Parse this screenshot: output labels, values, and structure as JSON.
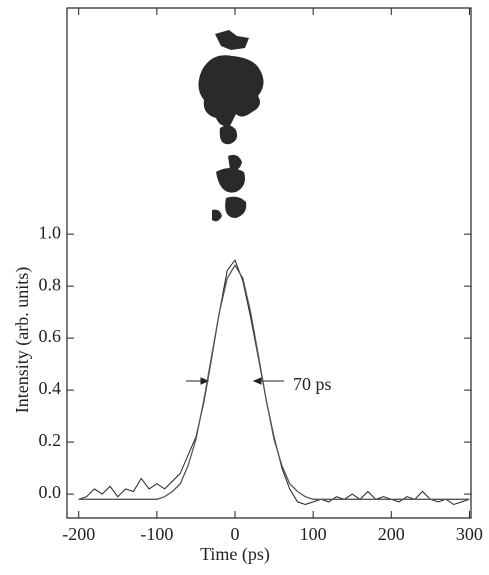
{
  "chart_data": {
    "type": "line",
    "x_label": "Time (ps)",
    "y_label": "Intensity (arb. units)",
    "annotation": "70 ps",
    "x": [
      -200,
      -190,
      -180,
      -170,
      -160,
      -150,
      -140,
      -130,
      -120,
      -110,
      -100,
      -90,
      -80,
      -70,
      -60,
      -50,
      -40,
      -30,
      -20,
      -10,
      0,
      10,
      20,
      30,
      40,
      50,
      60,
      70,
      80,
      90,
      100,
      110,
      120,
      130,
      140,
      150,
      160,
      170,
      180,
      190,
      200,
      210,
      220,
      230,
      240,
      250,
      260,
      270,
      280,
      290,
      300
    ],
    "series": [
      {
        "color": "#222222",
        "values": [
          -0.02,
          -0.01,
          0.02,
          0.0,
          0.03,
          -0.01,
          0.02,
          0.01,
          0.06,
          0.02,
          0.04,
          0.02,
          0.05,
          0.08,
          0.15,
          0.22,
          0.35,
          0.52,
          0.7,
          0.86,
          0.9,
          0.82,
          0.68,
          0.52,
          0.36,
          0.22,
          0.1,
          0.02,
          -0.03,
          -0.04,
          -0.03,
          -0.02,
          -0.03,
          -0.01,
          -0.02,
          0.0,
          -0.02,
          0.01,
          -0.02,
          -0.01,
          -0.02,
          -0.03,
          -0.01,
          -0.02,
          0.01,
          -0.02,
          -0.03,
          -0.02,
          -0.04,
          -0.03,
          -0.02
        ]
      },
      {
        "color": "#555555",
        "values": [
          -0.02,
          -0.02,
          -0.02,
          -0.02,
          -0.02,
          -0.02,
          -0.02,
          -0.02,
          -0.02,
          -0.02,
          -0.02,
          -0.01,
          0.01,
          0.04,
          0.11,
          0.21,
          0.36,
          0.53,
          0.7,
          0.83,
          0.88,
          0.83,
          0.7,
          0.53,
          0.36,
          0.21,
          0.11,
          0.04,
          0.01,
          -0.01,
          -0.02,
          -0.02,
          -0.02,
          -0.02,
          -0.02,
          -0.02,
          -0.02,
          -0.02,
          -0.02,
          -0.02,
          -0.02,
          -0.02,
          -0.02,
          -0.02,
          -0.02,
          -0.02,
          -0.02,
          -0.02,
          -0.02,
          -0.02,
          -0.02
        ]
      }
    ],
    "xlim": [
      -215,
      302
    ],
    "ylim": [
      -0.092,
      1.87
    ],
    "xticks": [
      -200,
      -100,
      0,
      100,
      200,
      300
    ],
    "yticks": [
      {
        "value": 0,
        "label": "0.0"
      },
      0.2,
      0.4,
      0.6,
      0.8,
      {
        "value": 1,
        "label": "1.0"
      }
    ]
  }
}
